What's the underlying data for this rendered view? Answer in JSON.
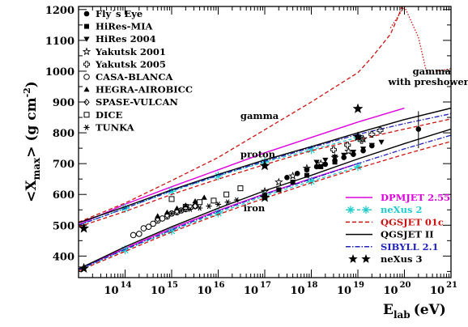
{
  "chart_data": {
    "type": "line",
    "xlabel_main": "E",
    "xlabel_sub": "lab",
    "xlabel_unit": "(eV)",
    "ylabel_left": "<X",
    "ylabel_sub": "max",
    "ylabel_right": "> (g cm",
    "ylabel_sup": "-2",
    "ylabel_end": ")",
    "x_scale": "log",
    "xlim": [
      10000000000000.0,
      1e+21
    ],
    "ylim": [
      330,
      1210
    ],
    "x_ticks": [
      {
        "value": 100000000000000.0,
        "base": "10",
        "exp": "14"
      },
      {
        "value": 1000000000000000.0,
        "base": "10",
        "exp": "15"
      },
      {
        "value": 1e+16,
        "base": "10",
        "exp": "16"
      },
      {
        "value": 1e+17,
        "base": "10",
        "exp": "17"
      },
      {
        "value": 1e+18,
        "base": "10",
        "exp": "18"
      },
      {
        "value": 1e+19,
        "base": "10",
        "exp": "19"
      },
      {
        "value": 1e+20,
        "base": "10",
        "exp": "20"
      },
      {
        "value": 1e+21,
        "base": "10",
        "exp": "21"
      }
    ],
    "y_ticks": [
      400,
      500,
      600,
      700,
      800,
      900,
      1000,
      1100,
      1200
    ],
    "experiment_legend": [
      {
        "label": "Fly´s Eye",
        "marker": "circle-filled"
      },
      {
        "label": "HiRes-MIA",
        "marker": "square-filled"
      },
      {
        "label": "HiRes 2004",
        "marker": "triangle-down-filled"
      },
      {
        "label": "Yakutsk 2001",
        "marker": "star-open"
      },
      {
        "label": "Yakutsk 2005",
        "marker": "cross-open"
      },
      {
        "label": "CASA-BLANCA",
        "marker": "circle-open"
      },
      {
        "label": "HEGRA-AIROBICC",
        "marker": "triangle-up-filled"
      },
      {
        "label": "SPASE-VULCAN",
        "marker": "diamond-open"
      },
      {
        "label": "DICE",
        "marker": "square-open"
      },
      {
        "label": "TUNKA",
        "marker": "asterisk"
      }
    ],
    "model_legend": [
      {
        "label": "DPMJET 2.55",
        "color": "#dd00dd",
        "style": "solid",
        "text_color": "#dd00dd"
      },
      {
        "label": "neXus 2",
        "color": "#22cccc",
        "style": "dash-star",
        "text_color": "#22cccc"
      },
      {
        "label": "QGSJET 01c",
        "color": "#cc1111",
        "style": "dashed",
        "text_color": "#cc1111"
      },
      {
        "label": "QGSJET II",
        "color": "#000000",
        "style": "solid",
        "text_color": "#000000"
      },
      {
        "label": "SIBYLL 2.1",
        "color": "#2222bb",
        "style": "dashdot",
        "text_color": "#2222bb"
      },
      {
        "label": "neXus 3",
        "color": "#000000",
        "style": "star",
        "text_color": "#000000"
      }
    ],
    "annotations": [
      {
        "text": "gamma",
        "x": 3e+16,
        "y": 845
      },
      {
        "text": "proton",
        "x": 3e+16,
        "y": 720
      },
      {
        "text": "iron",
        "x": 3.5e+16,
        "y": 545
      },
      {
        "text": "gamma",
        "x": 1.5e+20,
        "y": 990
      },
      {
        "text": "with preshower",
        "x": 4.5e+19,
        "y": 955
      }
    ],
    "series": [
      {
        "name": "gamma QGSJET 01c",
        "model": "QGSJET 01c",
        "primary": "gamma",
        "color": "#cc1111",
        "style": "dashed",
        "x": [
          10000000000000.0,
          100000000000000.0,
          1000000000000000.0,
          1e+16,
          1e+17,
          1e+18,
          1e+19,
          2e+19,
          5e+19,
          7e+19,
          1e+20
        ],
        "y": [
          510,
          572,
          645,
          720,
          810,
          900,
          995,
          1045,
          1120,
          1170,
          1230
        ]
      },
      {
        "name": "gamma with preshower",
        "model": "QGSJET 01c",
        "primary": "gamma",
        "color": "#cc1111",
        "style": "dotted",
        "x": [
          5e+19,
          1e+20,
          2e+20,
          3e+20,
          5e+20,
          1e+21
        ],
        "y": [
          1140,
          1210,
          1110,
          995,
          1000,
          1008
        ]
      },
      {
        "name": "proton DPMJET 2.55",
        "model": "DPMJET 2.55",
        "primary": "proton",
        "color": "#dd00dd",
        "style": "solid",
        "x": [
          10000000000000.0,
          100000000000000.0,
          1000000000000000.0,
          1e+16,
          1e+17,
          1e+18,
          1e+19,
          1e+20
        ],
        "y": [
          502,
          568,
          625,
          680,
          735,
          785,
          835,
          880
        ]
      },
      {
        "name": "proton neXus 2",
        "model": "neXus 2",
        "primary": "proton",
        "color": "#22cccc",
        "style": "dash-star",
        "x": [
          10000000000000.0,
          100000000000000.0,
          1000000000000000.0,
          1e+16,
          1e+17,
          1e+18,
          1e+19
        ],
        "y": [
          500,
          555,
          610,
          660,
          705,
          745,
          785
        ]
      },
      {
        "name": "proton QGSJET 01c",
        "model": "QGSJET 01c",
        "primary": "proton",
        "color": "#cc1111",
        "style": "dashed",
        "x": [
          10000000000000.0,
          100000000000000.0,
          1000000000000000.0,
          1e+16,
          1e+17,
          1e+18,
          1e+19,
          1e+20,
          1e+21
        ],
        "y": [
          495,
          545,
          600,
          650,
          697,
          742,
          778,
          812,
          845
        ]
      },
      {
        "name": "proton QGSJET II",
        "model": "QGSJET II",
        "primary": "proton",
        "color": "#000000",
        "style": "solid",
        "x": [
          10000000000000.0,
          100000000000000.0,
          1000000000000000.0,
          1e+16,
          1e+17,
          1e+18,
          1e+19,
          1e+20,
          1e+21
        ],
        "y": [
          508,
          560,
          615,
          665,
          712,
          755,
          800,
          843,
          880
        ]
      },
      {
        "name": "proton SIBYLL 2.1",
        "model": "SIBYLL 2.1",
        "primary": "proton",
        "color": "#2222bb",
        "style": "dashdot",
        "x": [
          10000000000000.0,
          100000000000000.0,
          1000000000000000.0,
          1e+16,
          1e+17,
          1e+18,
          1e+19,
          1e+20,
          1e+21
        ],
        "y": [
          500,
          555,
          612,
          662,
          708,
          752,
          795,
          830,
          862
        ]
      },
      {
        "name": "iron DPMJET 2.55",
        "model": "DPMJET 2.55",
        "primary": "iron",
        "color": "#dd00dd",
        "style": "solid",
        "x": [
          10000000000000.0,
          100000000000000.0,
          1000000000000000.0,
          1e+16,
          1e+17,
          1e+18,
          1e+19
        ],
        "y": [
          358,
          425,
          490,
          548,
          602,
          652,
          700
        ]
      },
      {
        "name": "iron neXus 2",
        "model": "neXus 2",
        "primary": "iron",
        "color": "#22cccc",
        "style": "dash-star",
        "x": [
          10000000000000.0,
          100000000000000.0,
          1000000000000000.0,
          1e+16,
          1e+17,
          1e+18,
          1e+19
        ],
        "y": [
          355,
          420,
          482,
          540,
          595,
          643,
          690
        ]
      },
      {
        "name": "iron QGSJET 01c",
        "model": "QGSJET 01c",
        "primary": "iron",
        "color": "#cc1111",
        "style": "dashed",
        "x": [
          10000000000000.0,
          100000000000000.0,
          1000000000000000.0,
          1e+16,
          1e+17,
          1e+18,
          1e+19,
          1e+20,
          1e+21
        ],
        "y": [
          352,
          415,
          478,
          535,
          588,
          638,
          685,
          730,
          772
        ]
      },
      {
        "name": "iron QGSJET II",
        "model": "QGSJET II",
        "primary": "iron",
        "color": "#000000",
        "style": "solid",
        "x": [
          10000000000000.0,
          100000000000000.0,
          1000000000000000.0,
          1e+16,
          1e+17,
          1e+18,
          1e+19,
          1e+20,
          1e+21
        ],
        "y": [
          358,
          430,
          495,
          555,
          612,
          662,
          715,
          765,
          812
        ]
      },
      {
        "name": "iron SIBYLL 2.1",
        "model": "SIBYLL 2.1",
        "primary": "iron",
        "color": "#2222bb",
        "style": "dashdot",
        "x": [
          10000000000000.0,
          100000000000000.0,
          1000000000000000.0,
          1e+16,
          1e+17,
          1e+18,
          1e+19,
          1e+20,
          1e+21
        ],
        "y": [
          356,
          422,
          485,
          545,
          600,
          650,
          700,
          748,
          792
        ]
      }
    ],
    "nexus3_points": {
      "x": [
        13000000000000.0,
        13000000000000.0,
        1e+17,
        1e+17,
        1e+19,
        1e+19
      ],
      "y": [
        490,
        360,
        693,
        590,
        878,
        787
      ]
    },
    "experiments": [
      {
        "name": "CASA-BLANCA",
        "marker": "circle-open",
        "x": [
          150000000000000.0,
          200000000000000.0,
          250000000000000.0,
          320000000000000.0,
          400000000000000.0,
          500000000000000.0,
          630000000000000.0,
          800000000000000.0,
          1000000000000000.0,
          1300000000000000.0,
          1600000000000000.0,
          2000000000000000.0,
          2500000000000000.0,
          3200000000000000.0
        ],
        "y": [
          468,
          472,
          490,
          495,
          505,
          515,
          522,
          528,
          538,
          542,
          548,
          552,
          558,
          562
        ]
      },
      {
        "name": "HEGRA-AIROBICC",
        "marker": "triangle-up-filled",
        "x": [
          500000000000000.0,
          800000000000000.0,
          1300000000000000.0,
          2000000000000000.0,
          3200000000000000.0,
          5000000000000000.0
        ],
        "y": [
          530,
          542,
          555,
          565,
          578,
          590
        ]
      },
      {
        "name": "SPASE-VULCAN",
        "marker": "diamond-open",
        "x": [
          500000000000000.0,
          800000000000000.0,
          1300000000000000.0,
          2000000000000000.0,
          3200000000000000.0
        ],
        "y": [
          520,
          532,
          545,
          555,
          562
        ]
      },
      {
        "name": "DICE",
        "marker": "square-open",
        "x": [
          1000000000000000.0,
          2000000000000000.0,
          4000000000000000.0,
          8000000000000000.0,
          1.5e+16,
          3e+16
        ],
        "y": [
          585,
          560,
          575,
          580,
          600,
          620
        ]
      },
      {
        "name": "TUNKA",
        "marker": "asterisk",
        "x": [
          1000000000000000.0,
          1600000000000000.0,
          2500000000000000.0,
          4000000000000000.0,
          6300000000000000.0,
          1e+16,
          1.6e+16,
          2.5e+16
        ],
        "y": [
          538,
          548,
          552,
          556,
          562,
          568,
          575,
          582
        ]
      },
      {
        "name": "Fly´s Eye",
        "marker": "circle-filled",
        "x": [
          3e+17,
          5e+17,
          8e+17,
          1.3e+18,
          2e+18,
          3.2e+18,
          5e+18,
          8e+18,
          1.3e+19,
          2e+19
        ],
        "y": [
          655,
          668,
          680,
          690,
          698,
          710,
          720,
          730,
          742,
          758
        ]
      },
      {
        "name": "HiRes-MIA",
        "marker": "square-filled",
        "x": [
          1e+17,
          2e+17,
          4e+17,
          8e+17,
          1.6e+18,
          3.2e+18
        ],
        "y": [
          595,
          615,
          640,
          662,
          690,
          705
        ]
      },
      {
        "name": "HiRes 2004",
        "marker": "triangle-down-filled",
        "x": [
          1.3e+18,
          2e+18,
          3.2e+18,
          5e+18,
          8e+18,
          1.3e+19,
          2e+19,
          3.2e+19
        ],
        "y": [
          705,
          712,
          722,
          728,
          738,
          748,
          760,
          770
        ]
      },
      {
        "name": "Yakutsk 2001",
        "marker": "star-open",
        "x": [
          1e+17,
          2e+17,
          4e+17,
          8e+17,
          1.6e+18,
          3.2e+18,
          6.3e+18,
          1.3e+19
        ],
        "y": [
          610,
          640,
          660,
          685,
          700,
          720,
          740,
          780
        ]
      },
      {
        "name": "Yakutsk 2005",
        "marker": "cross-open",
        "x": [
          3e+18,
          6e+18,
          1.2e+19,
          2e+19,
          3e+19
        ],
        "y": [
          745,
          760,
          775,
          795,
          808
        ]
      },
      {
        "name": "HiRes high-energy",
        "marker": "circle-filled",
        "x": [
          2e+20
        ],
        "y": [
          812
        ]
      }
    ]
  }
}
